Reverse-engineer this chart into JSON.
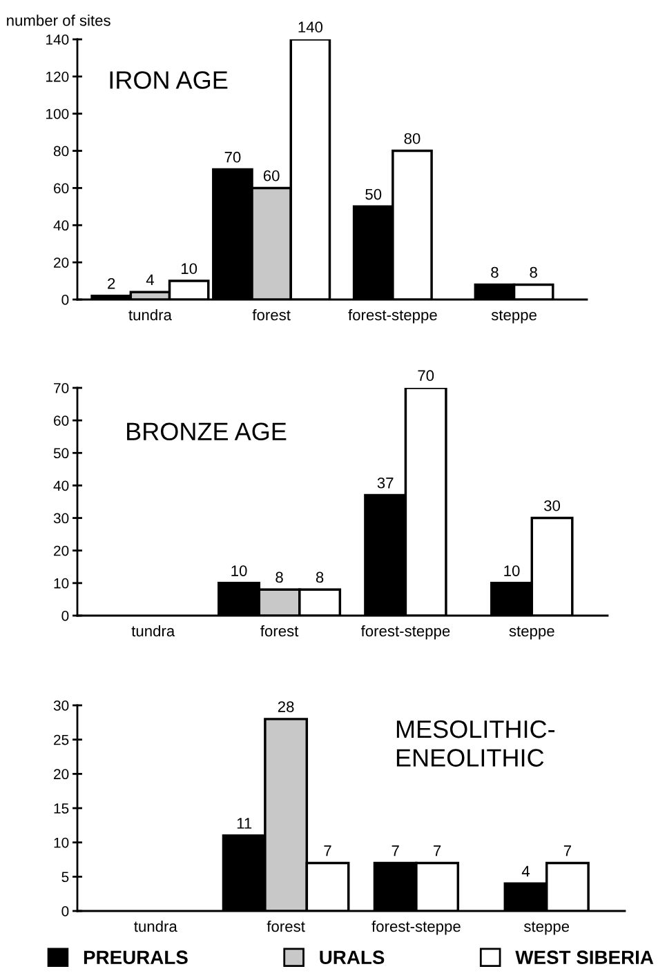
{
  "chart_data": [
    {
      "type": "bar",
      "title": "IRON AGE",
      "ylabel": "number of sites",
      "categories": [
        "tundra",
        "forest",
        "forest-steppe",
        "steppe"
      ],
      "series": [
        {
          "color": "#000000",
          "values": [
            2,
            70,
            50,
            8
          ]
        },
        {
          "color": "#c8c8c8",
          "values": [
            4,
            60,
            null,
            null
          ]
        },
        {
          "color": "#ffffff",
          "values": [
            10,
            140,
            80,
            8
          ]
        }
      ],
      "ylim": [
        0,
        140
      ],
      "yticks": [
        0,
        20,
        40,
        60,
        80,
        100,
        120,
        140
      ],
      "data_labels": true,
      "grid": false,
      "legend": false
    },
    {
      "type": "bar",
      "title": "BRONZE AGE",
      "categories": [
        "tundra",
        "forest",
        "forest-steppe",
        "steppe"
      ],
      "series": [
        {
          "color": "#000000",
          "values": [
            null,
            10,
            37,
            10
          ]
        },
        {
          "color": "#c8c8c8",
          "values": [
            null,
            8,
            null,
            null
          ]
        },
        {
          "color": "#ffffff",
          "values": [
            null,
            8,
            70,
            30
          ]
        }
      ],
      "ylim": [
        0,
        70
      ],
      "yticks": [
        0,
        10,
        20,
        30,
        40,
        50,
        60,
        70
      ],
      "data_labels": true,
      "grid": false,
      "legend": false
    },
    {
      "type": "bar",
      "title": "MESOLITHIC-\nENEOLITHIC",
      "categories": [
        "tundra",
        "forest",
        "forest-steppe",
        "steppe"
      ],
      "series": [
        {
          "name": "PREURALS",
          "color": "#000000",
          "values": [
            null,
            11,
            7,
            4
          ]
        },
        {
          "name": "URALS",
          "color": "#c8c8c8",
          "values": [
            null,
            28,
            null,
            null
          ]
        },
        {
          "name": "WEST SIBERIA",
          "color": "#ffffff",
          "values": [
            null,
            7,
            7,
            7
          ]
        }
      ],
      "ylim": [
        0,
        30
      ],
      "yticks": [
        0,
        5,
        10,
        15,
        20,
        25,
        30
      ],
      "data_labels": true,
      "grid": false,
      "legend": "bottom"
    }
  ]
}
